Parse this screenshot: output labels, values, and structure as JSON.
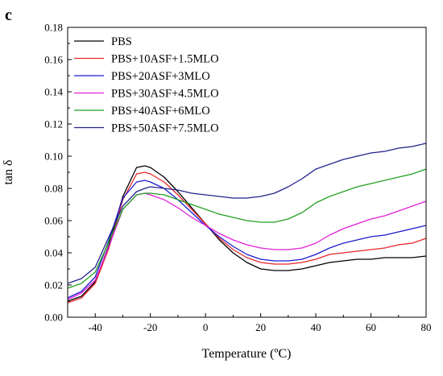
{
  "panel_label": "c",
  "chart_data": {
    "type": "line",
    "xlabel": "Temperature (ºC)",
    "ylabel": "tan δ",
    "xlim": [
      -50,
      80
    ],
    "ylim": [
      0.0,
      0.18
    ],
    "x_ticks": [
      -40,
      -20,
      0,
      20,
      40,
      60,
      80
    ],
    "x_tick_labels": [
      "-40",
      "-20",
      "0",
      "20",
      "40",
      "60",
      "80"
    ],
    "y_ticks": [
      0.0,
      0.02,
      0.04,
      0.06,
      0.08,
      0.1,
      0.12,
      0.14,
      0.16,
      0.18
    ],
    "y_tick_labels": [
      "0.00",
      "0.02",
      "0.04",
      "0.06",
      "0.08",
      "0.10",
      "0.12",
      "0.14",
      "0.16",
      "0.18"
    ],
    "grid": false,
    "legend_position": "top-left",
    "series": [
      {
        "name": "PBS",
        "color": "#000000",
        "x": [
          -50,
          -45,
          -40,
          -35,
          -30,
          -25,
          -22,
          -20,
          -15,
          -10,
          -5,
          0,
          5,
          10,
          15,
          20,
          25,
          30,
          35,
          40,
          45,
          50,
          55,
          60,
          65,
          70,
          75,
          80
        ],
        "y": [
          0.01,
          0.013,
          0.022,
          0.045,
          0.075,
          0.093,
          0.094,
          0.093,
          0.087,
          0.078,
          0.068,
          0.058,
          0.048,
          0.04,
          0.034,
          0.03,
          0.029,
          0.029,
          0.03,
          0.032,
          0.034,
          0.035,
          0.036,
          0.036,
          0.037,
          0.037,
          0.037,
          0.038
        ]
      },
      {
        "name": "PBS+10ASF+1.5MLO",
        "color": "#e8262a",
        "x": [
          -50,
          -45,
          -40,
          -35,
          -30,
          -25,
          -22,
          -20,
          -15,
          -10,
          -5,
          0,
          5,
          10,
          15,
          20,
          25,
          30,
          35,
          40,
          45,
          50,
          55,
          60,
          65,
          70,
          75,
          80
        ],
        "y": [
          0.009,
          0.012,
          0.021,
          0.043,
          0.073,
          0.089,
          0.09,
          0.089,
          0.084,
          0.076,
          0.067,
          0.058,
          0.049,
          0.042,
          0.037,
          0.034,
          0.033,
          0.033,
          0.034,
          0.036,
          0.039,
          0.04,
          0.041,
          0.042,
          0.043,
          0.045,
          0.046,
          0.049
        ]
      },
      {
        "name": "PBS+20ASF+3MLO",
        "color": "#1c1ccf",
        "x": [
          -50,
          -45,
          -40,
          -35,
          -30,
          -25,
          -22,
          -20,
          -15,
          -10,
          -5,
          0,
          5,
          10,
          15,
          20,
          25,
          30,
          35,
          40,
          45,
          50,
          55,
          60,
          65,
          70,
          75,
          80
        ],
        "y": [
          0.012,
          0.016,
          0.025,
          0.048,
          0.074,
          0.084,
          0.085,
          0.084,
          0.08,
          0.073,
          0.065,
          0.057,
          0.05,
          0.044,
          0.039,
          0.036,
          0.035,
          0.035,
          0.036,
          0.039,
          0.043,
          0.046,
          0.048,
          0.05,
          0.051,
          0.053,
          0.055,
          0.057
        ]
      },
      {
        "name": "PBS+30ASF+4.5MLO",
        "color": "#e020d8",
        "x": [
          -50,
          -45,
          -40,
          -35,
          -30,
          -25,
          -22,
          -20,
          -15,
          -10,
          -5,
          0,
          5,
          10,
          15,
          20,
          25,
          30,
          35,
          40,
          45,
          50,
          55,
          60,
          65,
          70,
          75,
          80
        ],
        "y": [
          0.011,
          0.015,
          0.023,
          0.044,
          0.067,
          0.076,
          0.077,
          0.076,
          0.073,
          0.068,
          0.062,
          0.057,
          0.052,
          0.048,
          0.045,
          0.043,
          0.042,
          0.042,
          0.043,
          0.046,
          0.051,
          0.055,
          0.058,
          0.061,
          0.063,
          0.066,
          0.069,
          0.072
        ]
      },
      {
        "name": "PBS+40ASF+6MLO",
        "color": "#22a022",
        "x": [
          -50,
          -45,
          -40,
          -35,
          -30,
          -25,
          -22,
          -20,
          -15,
          -10,
          -5,
          0,
          5,
          10,
          15,
          20,
          25,
          30,
          35,
          40,
          45,
          50,
          55,
          60,
          65,
          70,
          75,
          80
        ],
        "y": [
          0.018,
          0.021,
          0.028,
          0.047,
          0.067,
          0.076,
          0.077,
          0.077,
          0.076,
          0.073,
          0.07,
          0.067,
          0.064,
          0.062,
          0.06,
          0.059,
          0.059,
          0.061,
          0.065,
          0.071,
          0.075,
          0.078,
          0.081,
          0.083,
          0.085,
          0.087,
          0.089,
          0.092
        ]
      },
      {
        "name": "PBS+50ASF+7.5MLO",
        "color": "#23238c",
        "x": [
          -50,
          -45,
          -40,
          -35,
          -30,
          -25,
          -22,
          -20,
          -15,
          -10,
          -5,
          0,
          5,
          10,
          15,
          20,
          25,
          30,
          35,
          40,
          45,
          50,
          55,
          60,
          65,
          70,
          75,
          80
        ],
        "y": [
          0.021,
          0.024,
          0.031,
          0.05,
          0.069,
          0.078,
          0.08,
          0.081,
          0.08,
          0.079,
          0.077,
          0.076,
          0.075,
          0.074,
          0.074,
          0.075,
          0.077,
          0.081,
          0.086,
          0.092,
          0.095,
          0.098,
          0.1,
          0.102,
          0.103,
          0.105,
          0.106,
          0.108
        ]
      }
    ]
  }
}
